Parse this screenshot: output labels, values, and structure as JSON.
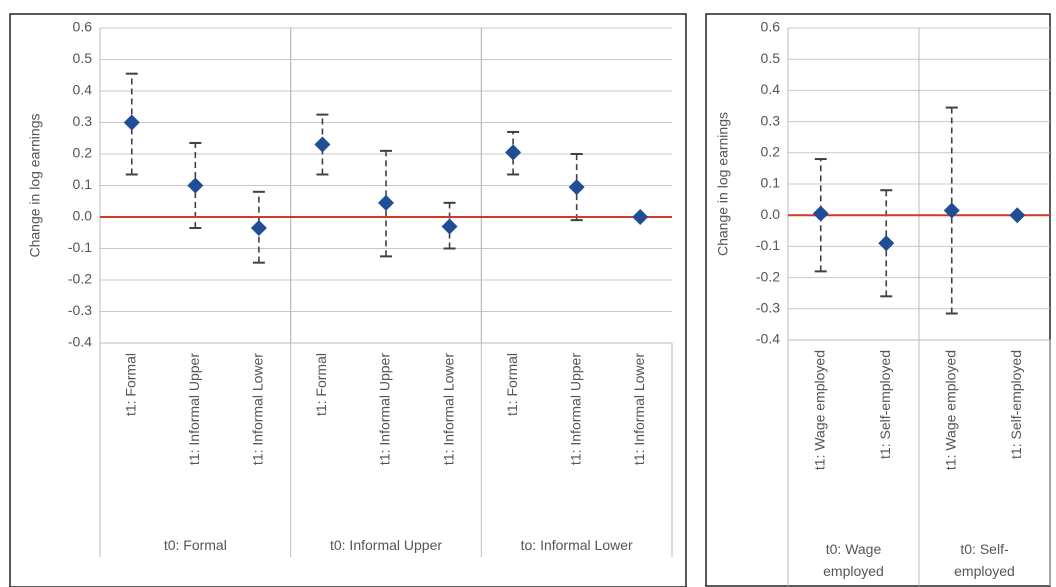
{
  "chart_data": [
    {
      "type": "errorbar",
      "ylabel": "Change in log earnings",
      "ylim": [
        -0.4,
        0.6
      ],
      "yticks": [
        -0.4,
        -0.3,
        -0.2,
        -0.1,
        {
          "value": 0,
          "label": "0.0"
        },
        0.1,
        0.2,
        0.3,
        0.4,
        0.5,
        0.6
      ],
      "grid": true,
      "color": "#1f4e96",
      "whisker_color": "#404040",
      "zero_line_color": "#d03a25",
      "groups": [
        {
          "label": "t0: Formal",
          "categories": [
            "t1: Formal",
            "t1: Informal Upper",
            "t1: Informal Lower"
          ],
          "values": [
            0.3,
            0.1,
            -0.035
          ],
          "low": [
            0.135,
            -0.035,
            -0.145
          ],
          "high": [
            0.455,
            0.235,
            0.08
          ]
        },
        {
          "label": "t0: Informal Upper",
          "categories": [
            "t1: Formal",
            "t1: Informal Upper",
            "t1: Informal Lower"
          ],
          "values": [
            0.23,
            0.045,
            -0.03
          ],
          "low": [
            0.135,
            -0.125,
            -0.1
          ],
          "high": [
            0.325,
            0.21,
            0.045
          ]
        },
        {
          "label": "to: Informal Lower",
          "categories": [
            "t1: Formal",
            "t1: Informal Upper",
            "t1: Informal Lower"
          ],
          "values": [
            0.205,
            0.095,
            0
          ],
          "low": [
            0.135,
            -0.01,
            null
          ],
          "high": [
            0.27,
            0.2,
            null
          ]
        }
      ]
    },
    {
      "type": "errorbar",
      "ylabel": "Change in log earnings",
      "ylim": [
        -0.4,
        0.6
      ],
      "yticks": [
        -0.4,
        -0.3,
        -0.2,
        -0.1,
        {
          "value": 0,
          "label": "0.0"
        },
        0.1,
        0.2,
        0.3,
        0.4,
        0.5,
        0.6
      ],
      "grid": true,
      "color": "#1f4e96",
      "whisker_color": "#404040",
      "zero_line_color": "#d03a25",
      "groups": [
        {
          "label": "t0: Wage employed",
          "categories": [
            "t1: Wage employed",
            "t1: Self-employed"
          ],
          "values": [
            0.005,
            -0.09
          ],
          "low": [
            -0.18,
            -0.26
          ],
          "high": [
            0.18,
            0.08
          ]
        },
        {
          "label": "t0: Self-employed",
          "categories": [
            "t1: Wage employed",
            "t1: Self-employed"
          ],
          "values": [
            0.015,
            0
          ],
          "low": [
            -0.315,
            null
          ],
          "high": [
            0.345,
            null
          ]
        }
      ]
    }
  ]
}
